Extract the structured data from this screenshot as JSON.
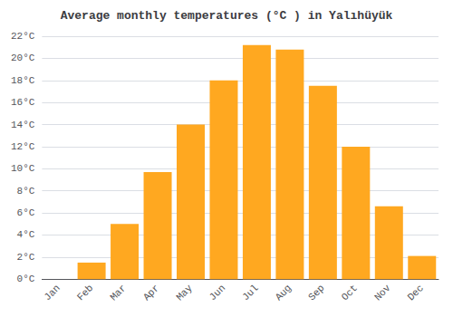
{
  "chart_data": {
    "type": "bar",
    "title": "Average monthly temperatures (°C ) in Yalıhüyük",
    "categories": [
      "Jan",
      "Feb",
      "Mar",
      "Apr",
      "May",
      "Jun",
      "Jul",
      "Aug",
      "Sep",
      "Oct",
      "Nov",
      "Dec"
    ],
    "values": [
      0,
      1.5,
      5.0,
      9.7,
      14.0,
      18.0,
      21.2,
      20.8,
      17.5,
      12.0,
      6.6,
      2.1
    ],
    "color": "#FFA820",
    "ylim": [
      0,
      22
    ],
    "yticks": [
      {
        "value": 0,
        "label": "0°C"
      },
      {
        "value": 2,
        "label": "2°C"
      },
      {
        "value": 4,
        "label": "4°C"
      },
      {
        "value": 6,
        "label": "6°C"
      },
      {
        "value": 8,
        "label": "8°C"
      },
      {
        "value": 10,
        "label": "10°C"
      },
      {
        "value": 12,
        "label": "12°C"
      },
      {
        "value": 14,
        "label": "14°C"
      },
      {
        "value": 16,
        "label": "16°C"
      },
      {
        "value": 18,
        "label": "18°C"
      },
      {
        "value": 20,
        "label": "20°C"
      },
      {
        "value": 22,
        "label": "22°C"
      }
    ],
    "grid": true
  }
}
